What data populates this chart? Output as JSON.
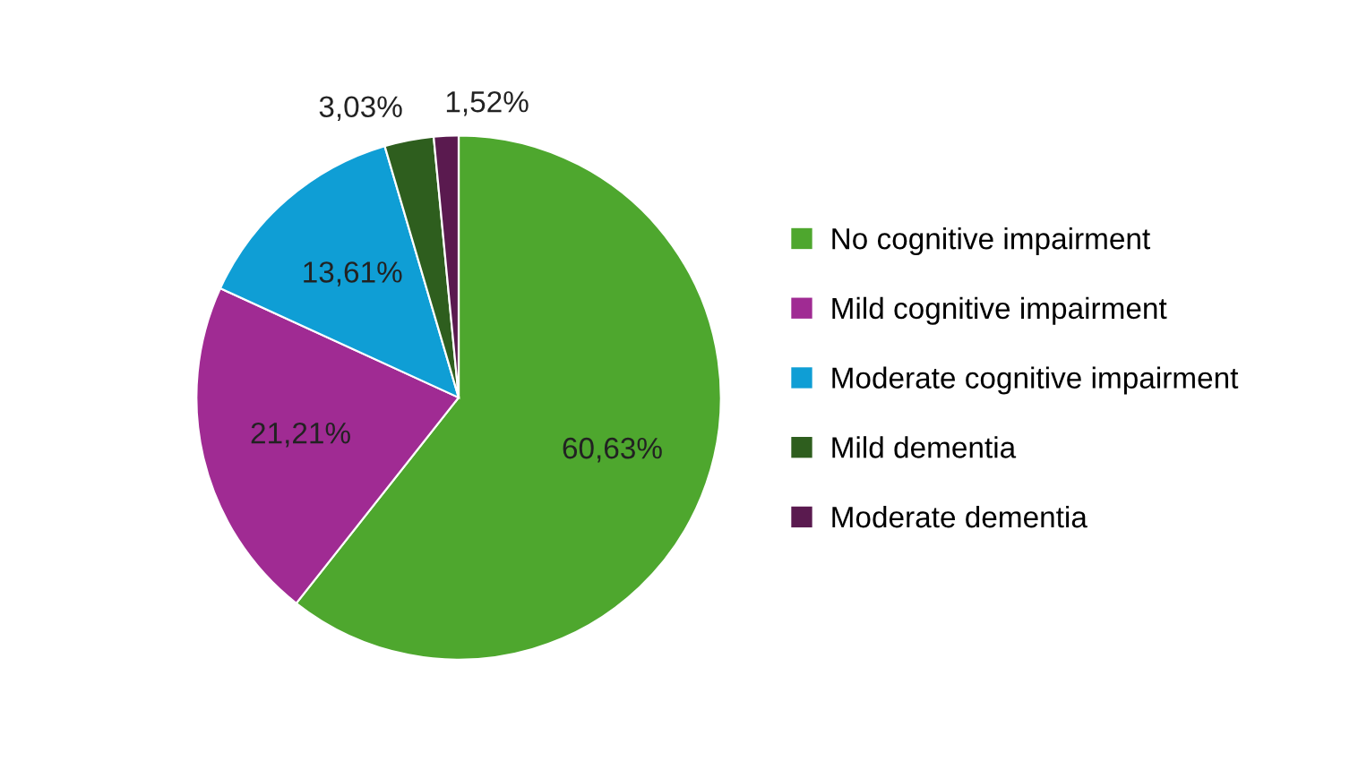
{
  "chart_data": {
    "type": "pie",
    "categories": [
      "No cognitive impairment",
      "Mild cognitive impairment",
      "Moderate cognitive impairment",
      "Mild dementia",
      "Moderate dementia"
    ],
    "values": [
      60.63,
      21.21,
      13.61,
      3.03,
      1.52
    ],
    "colors": [
      "#4ea72e",
      "#a02b93",
      "#0f9ed5",
      "#2e5e1e",
      "#5a1a4f"
    ],
    "value_labels": [
      "60,63%",
      "21,21%",
      "13,61%",
      "3,03%",
      "1,52%"
    ],
    "legend": "right"
  }
}
